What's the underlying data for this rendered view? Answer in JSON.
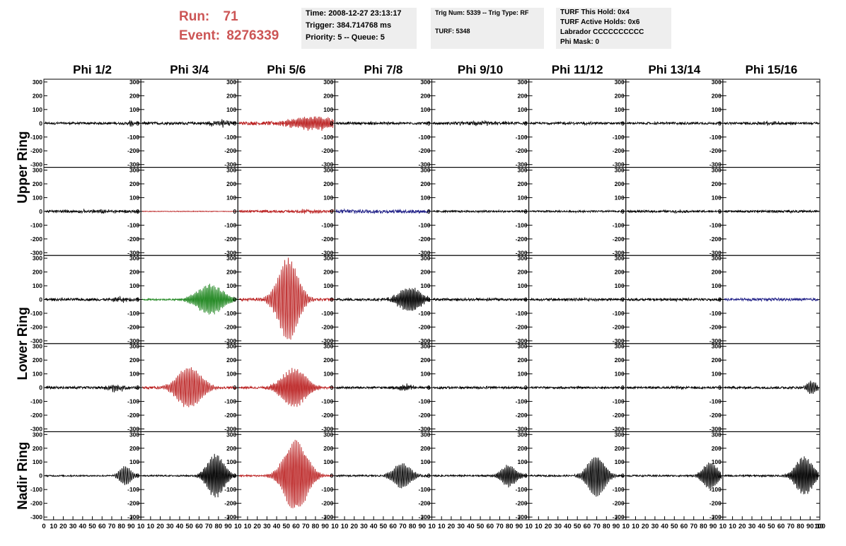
{
  "header": {
    "run_label": "Run:",
    "run_value": "71",
    "event_label": "Event:",
    "event_value": "8276339",
    "time_line": "Time: 2008-12-27 23:13:17",
    "trigger_line": "Trigger: 384.714768 ms",
    "priority_line": "Priority: 5 -- Queue: 5",
    "trig_line": "Trig Num: 5339 -- Trig Type: RF",
    "turf_line": "TURF: 5348",
    "turf_hold_line": "TURF This Hold: 0x4",
    "turf_active_line": "TURF Active Holds: 0x6",
    "labrador_line": "Labrador CCCCCCCCCC",
    "phimask_line": "Phi Mask: 0"
  },
  "colors": {
    "run_text": "#cc5555",
    "panel_box": "#eeeeee",
    "trace_default": "#000000",
    "trace_red": "#bb2222",
    "trace_green": "#228822",
    "trace_blue": "#222288"
  },
  "chart_data": {
    "type": "line",
    "columns": [
      "Phi 1/2",
      "Phi 3/4",
      "Phi 5/6",
      "Phi 7/8",
      "Phi 9/10",
      "Phi 11/12",
      "Phi 13/14",
      "Phi 15/16"
    ],
    "rows": [
      "Upper Ring",
      "Lower Ring",
      "Nadir Ring"
    ],
    "row_label_spans": [
      [
        0,
        2
      ],
      [
        2,
        4
      ],
      [
        4,
        5
      ]
    ],
    "ylim": [
      -320,
      320
    ],
    "xlim": [
      0,
      100
    ],
    "y_ticks": [
      300,
      200,
      100,
      0,
      -100,
      -200,
      -300
    ],
    "y_tick_labels": [
      "300",
      "200",
      "100",
      "0",
      "-100",
      "-200",
      "-300"
    ],
    "x_ticks_first": [
      "0",
      "10",
      "20",
      "30",
      "40",
      "50",
      "60",
      "70",
      "80",
      "90",
      "10"
    ],
    "x_ticks_mid": [
      "10",
      "20",
      "30",
      "40",
      "50",
      "60",
      "70",
      "80",
      "90",
      "10"
    ],
    "x_ticks_last_extra": "100",
    "panels": [
      [
        {
          "color": "black",
          "amp": 8,
          "env": "noise",
          "center": 0.9,
          "width": 0.05,
          "peak": 25
        },
        {
          "color": "black",
          "amp": 9,
          "env": "noise",
          "center": 0.85,
          "width": 0.15,
          "peak": 30
        },
        {
          "color": "red",
          "amp": 12,
          "env": "rise",
          "center": 0.8,
          "width": 0.3,
          "peak": 45
        },
        {
          "color": "black",
          "amp": 8,
          "env": "noise",
          "center": 0.5,
          "width": 0.2,
          "peak": 10
        },
        {
          "color": "black",
          "amp": 9,
          "env": "noise",
          "center": 0.5,
          "width": 0.3,
          "peak": 15
        },
        {
          "color": "black",
          "amp": 7,
          "env": "noise",
          "center": 0.5,
          "width": 0.3,
          "peak": 8
        },
        {
          "color": "black",
          "amp": 7,
          "env": "noise",
          "center": 0.5,
          "width": 0.3,
          "peak": 8
        },
        {
          "color": "black",
          "amp": 8,
          "env": "noise",
          "center": 0.5,
          "width": 0.3,
          "peak": 10
        }
      ],
      [
        {
          "color": "black",
          "amp": 9,
          "env": "noise",
          "center": 0.5,
          "width": 0.3,
          "peak": 10
        },
        {
          "color": "red",
          "amp": 2,
          "env": "noise",
          "center": 0.5,
          "width": 0.3,
          "peak": 2
        },
        {
          "color": "red",
          "amp": 8,
          "env": "noise",
          "center": 0.8,
          "width": 0.3,
          "peak": 15
        },
        {
          "color": "blue",
          "amp": 12,
          "env": "noise",
          "center": 0.2,
          "width": 0.3,
          "peak": 8
        },
        {
          "color": "black",
          "amp": 6,
          "env": "noise",
          "center": 0.5,
          "width": 0.3,
          "peak": 5
        },
        {
          "color": "black",
          "amp": 6,
          "env": "noise",
          "center": 0.5,
          "width": 0.3,
          "peak": 5
        },
        {
          "color": "black",
          "amp": 7,
          "env": "noise",
          "center": 0.5,
          "width": 0.3,
          "peak": 5
        },
        {
          "color": "black",
          "amp": 7,
          "env": "noise",
          "center": 0.5,
          "width": 0.3,
          "peak": 8
        }
      ],
      [
        {
          "color": "black",
          "amp": 9,
          "env": "noise",
          "center": 0.8,
          "width": 0.12,
          "peak": 25
        },
        {
          "color": "green",
          "amp": 6,
          "env": "pulse",
          "center": 0.72,
          "width": 0.18,
          "peak": 110
        },
        {
          "color": "red",
          "amp": 10,
          "env": "pulse",
          "center": 0.52,
          "width": 0.14,
          "peak": 300
        },
        {
          "color": "black",
          "amp": 9,
          "env": "pulse",
          "center": 0.78,
          "width": 0.15,
          "peak": 90
        },
        {
          "color": "black",
          "amp": 8,
          "env": "noise",
          "center": 0.5,
          "width": 0.3,
          "peak": 8
        },
        {
          "color": "black",
          "amp": 8,
          "env": "noise",
          "center": 0.5,
          "width": 0.3,
          "peak": 8
        },
        {
          "color": "black",
          "amp": 8,
          "env": "noise",
          "center": 0.5,
          "width": 0.3,
          "peak": 8
        },
        {
          "color": "blue",
          "amp": 9,
          "env": "noise",
          "center": 0.5,
          "width": 0.3,
          "peak": 8
        }
      ],
      [
        {
          "color": "black",
          "amp": 9,
          "env": "noise",
          "center": 0.75,
          "width": 0.12,
          "peak": 30
        },
        {
          "color": "red",
          "amp": 8,
          "env": "pulse",
          "center": 0.5,
          "width": 0.17,
          "peak": 150
        },
        {
          "color": "red",
          "amp": 8,
          "env": "pulse",
          "center": 0.58,
          "width": 0.17,
          "peak": 140
        },
        {
          "color": "black",
          "amp": 8,
          "env": "noise",
          "center": 0.75,
          "width": 0.12,
          "peak": 30
        },
        {
          "color": "black",
          "amp": 8,
          "env": "noise",
          "center": 0.5,
          "width": 0.3,
          "peak": 8
        },
        {
          "color": "black",
          "amp": 7,
          "env": "noise",
          "center": 0.5,
          "width": 0.3,
          "peak": 6
        },
        {
          "color": "black",
          "amp": 7,
          "env": "noise",
          "center": 0.5,
          "width": 0.3,
          "peak": 6
        },
        {
          "color": "black",
          "amp": 8,
          "env": "pulse",
          "center": 0.93,
          "width": 0.07,
          "peak": 45
        }
      ],
      [
        {
          "color": "black",
          "amp": 5,
          "env": "pulse",
          "center": 0.85,
          "width": 0.08,
          "peak": 70
        },
        {
          "color": "black",
          "amp": 5,
          "env": "pulse",
          "center": 0.78,
          "width": 0.12,
          "peak": 160
        },
        {
          "color": "red",
          "amp": 6,
          "env": "pulse",
          "center": 0.6,
          "width": 0.16,
          "peak": 260
        },
        {
          "color": "black",
          "amp": 6,
          "env": "pulse",
          "center": 0.7,
          "width": 0.12,
          "peak": 90
        },
        {
          "color": "black",
          "amp": 6,
          "env": "pulse",
          "center": 0.8,
          "width": 0.1,
          "peak": 80
        },
        {
          "color": "black",
          "amp": 6,
          "env": "pulse",
          "center": 0.7,
          "width": 0.12,
          "peak": 150
        },
        {
          "color": "black",
          "amp": 6,
          "env": "pulse",
          "center": 0.88,
          "width": 0.1,
          "peak": 100
        },
        {
          "color": "black",
          "amp": 6,
          "env": "pulse",
          "center": 0.85,
          "width": 0.12,
          "peak": 140
        }
      ]
    ]
  }
}
